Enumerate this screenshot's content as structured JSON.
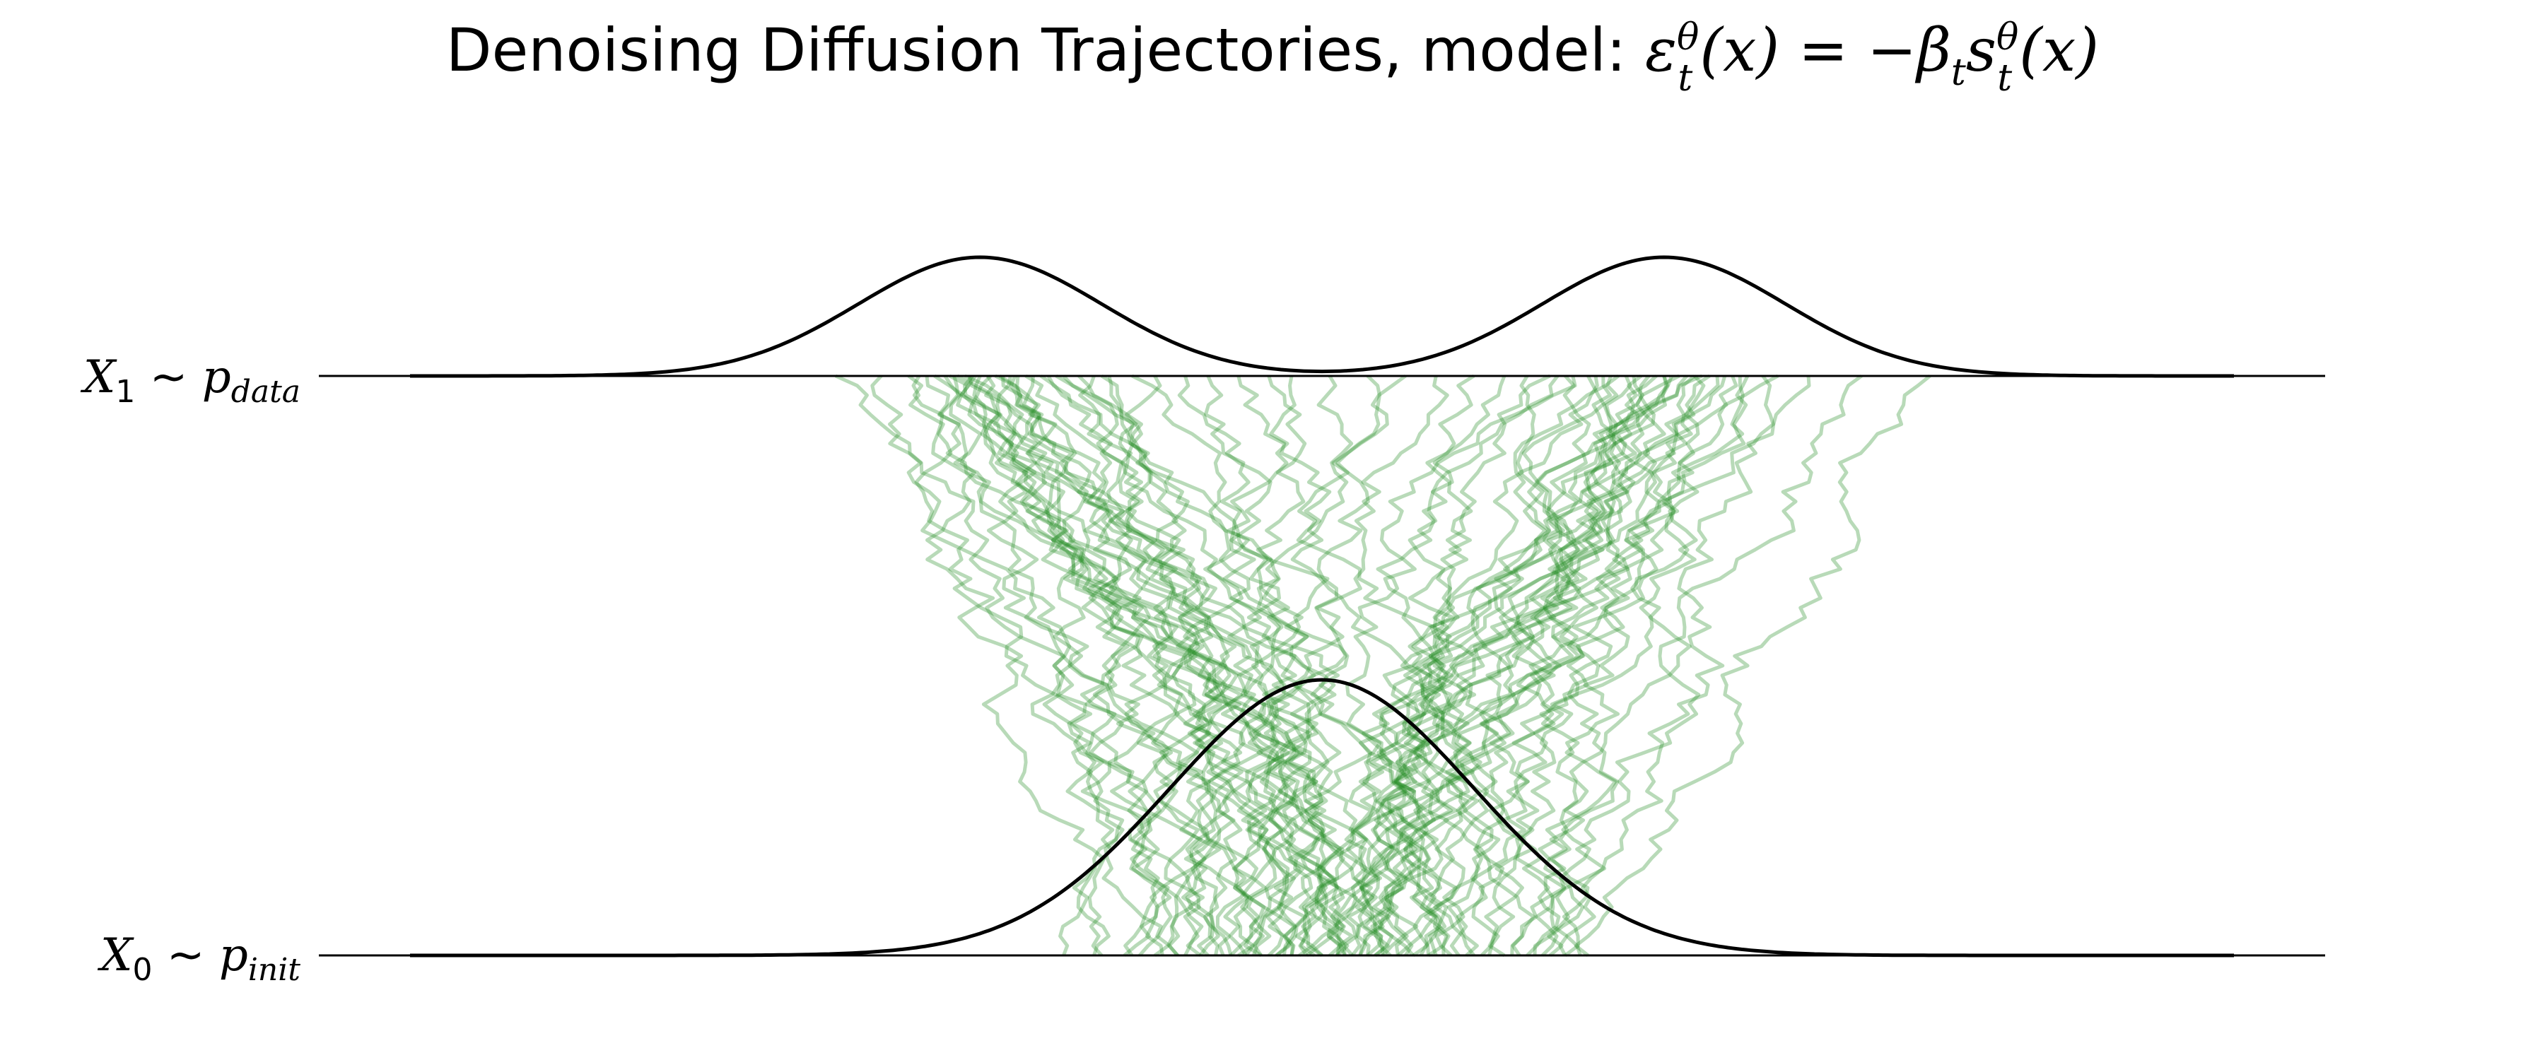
{
  "chart_data": {
    "type": "line",
    "title": {
      "prefix": "Denoising Diffusion Trajectories, model: ",
      "eps": "ε",
      "theta1": "θ",
      "t1": "t",
      "x1": "(x)",
      "eq": " = −",
      "beta": "β",
      "t2": "t",
      "s": "s",
      "theta2": "θ",
      "t3": "t",
      "x2": "(x)"
    },
    "labels": {
      "top": {
        "var": "X",
        "sub": "1",
        "tilde": " ~ ",
        "p": "p",
        "psub": "data"
      },
      "bottom": {
        "var": "X",
        "sub": "0",
        "tilde": " ~ ",
        "p": "p",
        "psub": "init"
      }
    },
    "x_range": [
      -6,
      6
    ],
    "t_range": [
      0,
      1
    ],
    "baseline_line_range": [
      -6.6,
      6.6
    ],
    "density_curve_range": [
      -6,
      6
    ],
    "p_data": {
      "type": "gaussian_mixture",
      "components": [
        {
          "mean": -2.25,
          "std": 0.8,
          "weight": 0.5
        },
        {
          "mean": 2.25,
          "std": 0.8,
          "weight": 0.5
        }
      ]
    },
    "p_init": {
      "type": "gaussian",
      "mean": 0,
      "std": 1
    },
    "trajectories": {
      "count": 80,
      "steps": 60,
      "color": "#228B22",
      "opacity": 0.32,
      "end_points_t1": [
        -3.2,
        -2.18,
        -2.9,
        -2.6,
        -2.48,
        -2.4,
        -2.3,
        -2.2,
        -2.1,
        -2.0,
        -1.95,
        -1.85,
        -1.75,
        -1.6,
        -1.5,
        -1.4,
        -1.25,
        -1.1,
        -0.9,
        -0.75,
        -0.55,
        -0.35,
        -0.2,
        -2.72,
        -2.55,
        -2.45,
        -2.35,
        -2.25,
        -2.15,
        -2.05,
        -1.9,
        -1.7,
        -1.45,
        -2.65,
        -2.32,
        -2.12,
        -1.8,
        -2.42,
        -2.28,
        -2.02,
        0.05,
        0.3,
        0.55,
        0.75,
        1.0,
        1.2,
        1.35,
        1.5,
        1.6,
        1.75,
        1.85,
        1.95,
        2.05,
        2.15,
        2.25,
        2.35,
        2.45,
        2.55,
        2.65,
        2.8,
        3.0,
        3.2,
        3.55,
        4.0,
        1.65,
        1.9,
        2.1,
        2.3,
        2.5,
        2.7,
        2.9,
        2.0,
        2.2,
        2.4,
        1.55,
        1.8,
        2.6,
        2.75,
        2.45,
        2.25
      ],
      "start_points_t0": [
        -1.7,
        -0.95,
        -1.5,
        -1.45,
        -1.25,
        -1.1,
        -0.9,
        -0.8,
        -0.6,
        -0.5,
        -0.35,
        -0.3,
        -0.25,
        -0.2,
        -0.15,
        -0.1,
        -0.05,
        -0.3,
        -0.1,
        0.05,
        0.1,
        0.0,
        0.15,
        -1.2,
        -1.05,
        -0.95,
        -0.7,
        -0.55,
        -0.45,
        -0.4,
        -0.2,
        0.0,
        0.1,
        -1.3,
        -0.8,
        -0.65,
        -0.5,
        -0.75,
        -0.6,
        -0.4,
        0.2,
        0.25,
        0.3,
        0.1,
        0.35,
        0.4,
        0.2,
        0.5,
        0.45,
        0.6,
        0.7,
        0.8,
        0.9,
        1.0,
        1.1,
        1.2,
        1.3,
        0.85,
        1.4,
        1.5,
        1.6,
        1.7,
        1.6,
        1.75,
        0.3,
        0.55,
        0.65,
        0.75,
        0.95,
        1.05,
        1.45,
        0.4,
        0.5,
        0.7,
        0.15,
        0.25,
        1.25,
        1.35,
        0.6,
        0.35
      ]
    },
    "grid": false,
    "legend": "none"
  }
}
